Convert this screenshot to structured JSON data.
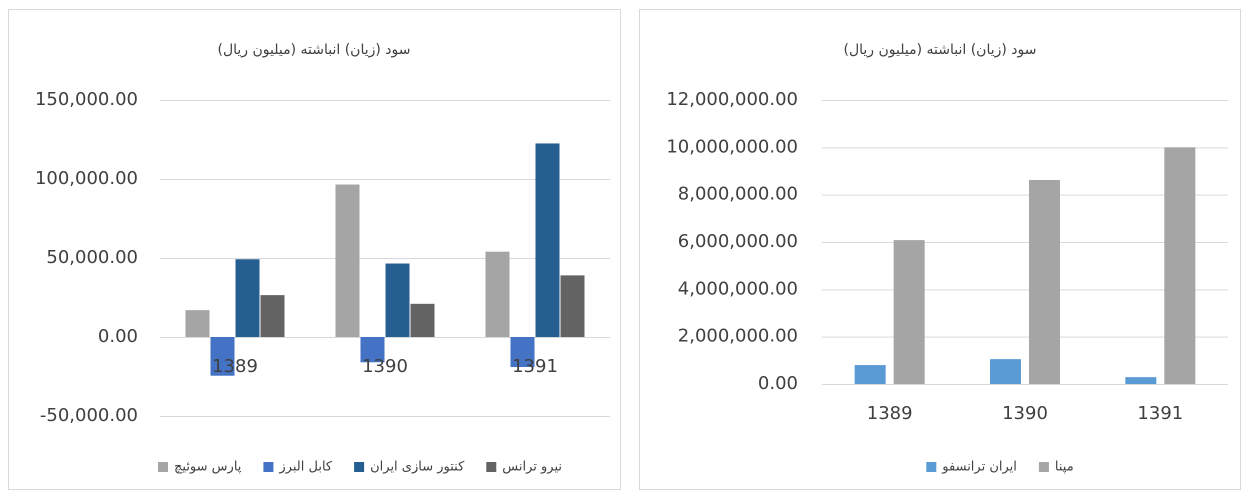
{
  "chart_data": [
    {
      "type": "bar",
      "title": "سود (زیان) انباشته (میلیون ریال)",
      "categories": [
        "1389",
        "1390",
        "1391"
      ],
      "series": [
        {
          "name": "پارس سوئیچ",
          "color": "#a5a5a5",
          "values": [
            17000,
            96500,
            54000
          ]
        },
        {
          "name": "کابل البرز",
          "color": "#4472c4",
          "values": [
            -24500,
            -16000,
            -19000
          ]
        },
        {
          "name": "کنتور سازی ایران",
          "color": "#255e91",
          "values": [
            49200,
            46500,
            122500
          ]
        },
        {
          "name": "نیرو ترانس",
          "color": "#636363",
          "values": [
            26500,
            21000,
            39000
          ]
        }
      ],
      "ylim": [
        -50000,
        150000
      ],
      "yticks": [
        {
          "value": -50000,
          "label": "-50,000.00"
        },
        {
          "value": 0,
          "label": "0.00"
        },
        {
          "value": 50000,
          "label": "50,000.00"
        },
        {
          "value": 100000,
          "label": "100,000.00"
        },
        {
          "value": 150000,
          "label": "150,000.00"
        }
      ],
      "grid": true,
      "legend": "bottom"
    },
    {
      "type": "bar",
      "title": "سود (زیان) انباشته (میلیون ریال)",
      "categories": [
        "1389",
        "1390",
        "1391"
      ],
      "series": [
        {
          "name": "ایران ترانسفو",
          "color": "#5b9bd5",
          "values": [
            800000,
            1050000,
            290000
          ]
        },
        {
          "name": "مپنا",
          "color": "#a5a5a5",
          "values": [
            6080000,
            8620000,
            10000000
          ]
        }
      ],
      "ylim": [
        0,
        12000000
      ],
      "yticks": [
        {
          "value": 0,
          "label": "0.00"
        },
        {
          "value": 2000000,
          "label": "2,000,000.00"
        },
        {
          "value": 4000000,
          "label": "4,000,000.00"
        },
        {
          "value": 6000000,
          "label": "6,000,000.00"
        },
        {
          "value": 8000000,
          "label": "8,000,000.00"
        },
        {
          "value": 10000000,
          "label": "10,000,000.00"
        },
        {
          "value": 12000000,
          "label": "12,000,000.00"
        }
      ],
      "grid": true,
      "legend": "bottom"
    }
  ]
}
